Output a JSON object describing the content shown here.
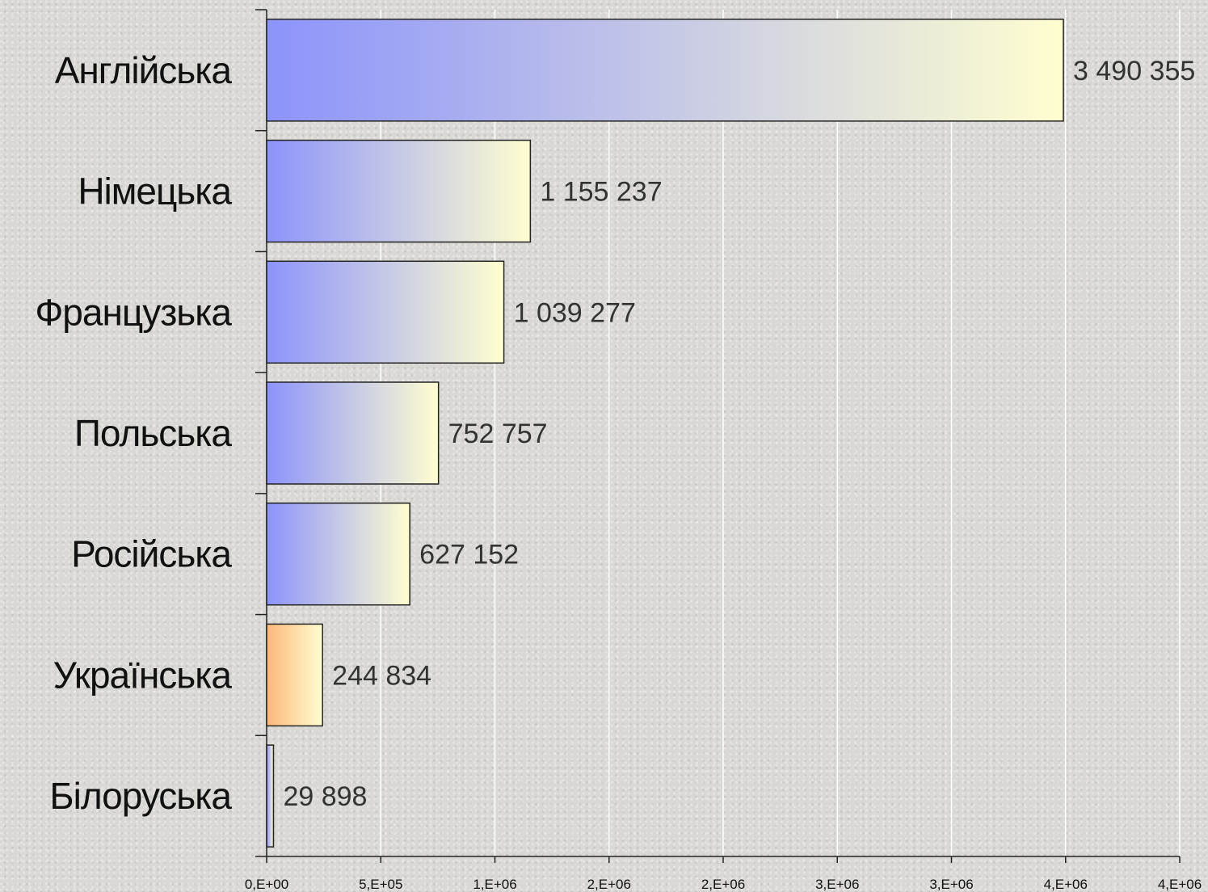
{
  "chart_data": {
    "type": "bar",
    "orientation": "horizontal",
    "categories": [
      "Англійська",
      "Німецька",
      "Французька",
      "Польська",
      "Російська",
      "Українська",
      "Білоруська"
    ],
    "values": [
      3490355,
      1155237,
      1039277,
      752757,
      627152,
      244834,
      29898
    ],
    "value_labels": [
      "3 490 355",
      "1 155 237",
      "1 039 277",
      "752 757",
      "627 152",
      "244 834",
      "29 898"
    ],
    "x_ticks": [
      0,
      500000,
      1000000,
      1500000,
      2000000,
      2500000,
      3000000,
      3500000,
      4000000
    ],
    "x_tick_labels": [
      "0,E+00",
      "5,E+05",
      "1,E+06",
      "2,E+06",
      "2,E+06",
      "3,E+06",
      "3,E+06",
      "4,E+06",
      "4,E+06"
    ],
    "xlim": [
      0,
      4000000
    ],
    "grid": true,
    "colors": {
      "bar_start": "#8c93fb",
      "bar_end": "#fffed0",
      "highlight_start": "#fdb77a",
      "highlight_end": "#fffed0",
      "bar_stroke": "#222222",
      "grid": "#ffffff"
    },
    "highlight_category": "Українська"
  }
}
